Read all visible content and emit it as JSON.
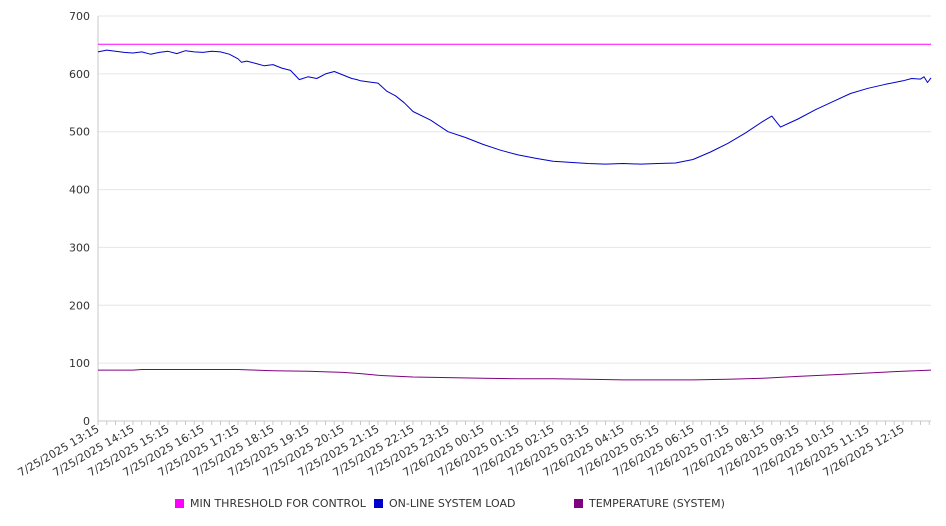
{
  "chart_data": {
    "type": "line",
    "y_axis": {
      "ylim": [
        0,
        700
      ],
      "ticks": [
        "0",
        "100",
        "200",
        "300",
        "400",
        "500",
        "600",
        "700"
      ]
    },
    "x_axis": {
      "tick_labels": [
        "7/25/2025 13:15",
        "7/25/2025 14:15",
        "7/25/2025 15:15",
        "7/25/2025 16:15",
        "7/25/2025 17:15",
        "7/25/2025 18:15",
        "7/25/2025 19:15",
        "7/25/2025 20:15",
        "7/25/2025 21:15",
        "7/25/2025 22:15",
        "7/25/2025 23:15",
        "7/26/2025 00:15",
        "7/26/2025 01:15",
        "7/26/2025 02:15",
        "7/26/2025 03:15",
        "7/26/2025 04:15",
        "7/26/2025 05:15",
        "7/26/2025 06:15",
        "7/26/2025 07:15",
        "7/26/2025 08:15",
        "7/26/2025 09:15",
        "7/26/2025 10:15",
        "7/26/2025 11:15",
        "7/26/2025 12:15"
      ],
      "x_range_hours": [
        0,
        23.8
      ]
    },
    "grid": "horizontal",
    "legend_position": "bottom",
    "series": [
      {
        "name": "MIN THRESHOLD FOR CONTROL",
        "color": "#ff00ff",
        "x_hours": [
          0,
          23.8
        ],
        "values": [
          651,
          651
        ]
      },
      {
        "name": "ON-LINE SYSTEM LOAD",
        "color": "#0000cc",
        "x_hours": [
          0,
          0.25,
          0.5,
          0.75,
          1,
          1.25,
          1.5,
          1.75,
          2,
          2.25,
          2.5,
          2.75,
          3,
          3.25,
          3.5,
          3.75,
          4,
          4.1,
          4.25,
          4.5,
          4.75,
          5,
          5.25,
          5.5,
          5.75,
          6,
          6.25,
          6.5,
          6.75,
          7,
          7.25,
          7.4,
          7.5,
          7.75,
          8,
          8.25,
          8.5,
          8.75,
          9,
          9.5,
          10,
          10.5,
          11,
          11.5,
          12,
          12.5,
          13,
          13.5,
          14,
          14.5,
          15,
          15.5,
          16,
          16.5,
          17,
          17.5,
          18,
          18.5,
          19,
          19.25,
          19.5,
          19.75,
          20,
          20.5,
          21,
          21.5,
          22,
          22.5,
          23,
          23.25,
          23.5,
          23.6,
          23.7,
          23.8
        ],
        "values": [
          638,
          641,
          639,
          637,
          636,
          638,
          634,
          637,
          639,
          635,
          640,
          638,
          637,
          639,
          638,
          634,
          626,
          620,
          622,
          618,
          614,
          616,
          610,
          606,
          590,
          595,
          592,
          600,
          604,
          598,
          592,
          590,
          588,
          586,
          584,
          570,
          562,
          550,
          535,
          520,
          500,
          490,
          478,
          468,
          460,
          454,
          449,
          447,
          445,
          444,
          445,
          444,
          445,
          446,
          452,
          465,
          480,
          498,
          518,
          527,
          508,
          515,
          522,
          538,
          552,
          566,
          575,
          582,
          588,
          592,
          591,
          595,
          585,
          593
        ]
      },
      {
        "name": "TEMPERATURE (SYSTEM)",
        "color": "#800080",
        "x_hours": [
          0,
          1,
          1.25,
          2,
          3,
          4,
          4.5,
          5,
          6,
          7,
          7.5,
          8,
          9,
          10,
          11,
          12,
          13,
          14,
          15,
          16,
          17,
          18,
          19,
          20,
          21,
          22,
          23,
          23.8
        ],
        "values": [
          88,
          88,
          89,
          89,
          89,
          89,
          88,
          87,
          86,
          84,
          82,
          79,
          76,
          75,
          74,
          73,
          73,
          72,
          71,
          71,
          71,
          72,
          74,
          77,
          80,
          83,
          86,
          88
        ]
      }
    ]
  }
}
